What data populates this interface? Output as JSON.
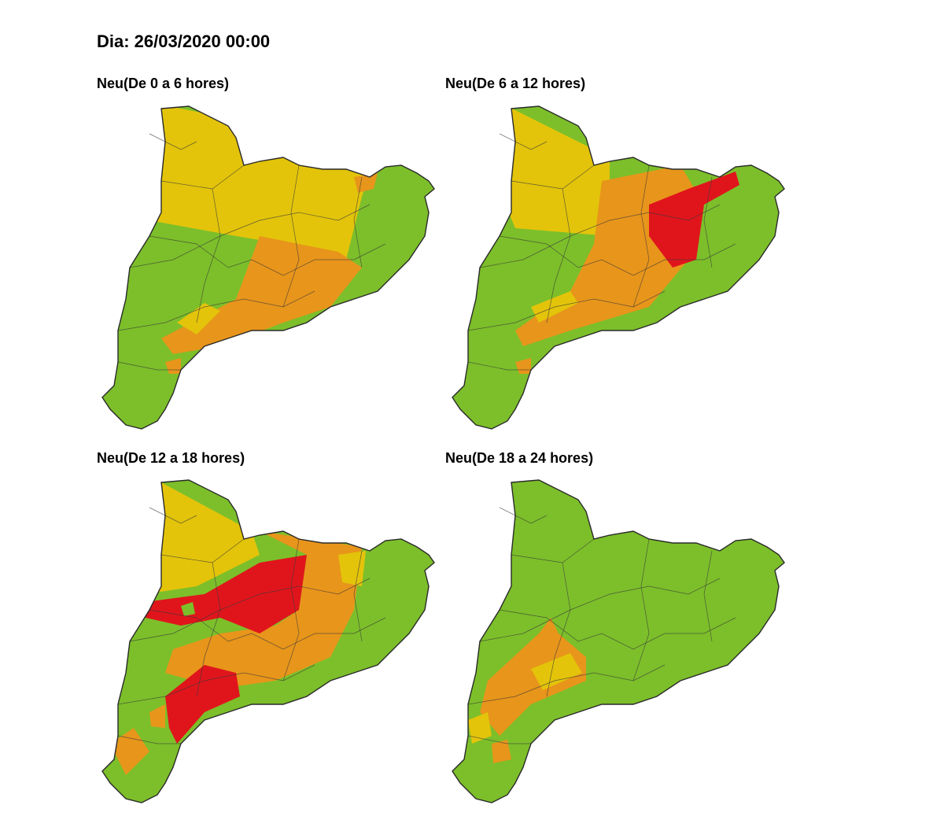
{
  "header": {
    "title": "Dia: 26/03/2020 00:00"
  },
  "panels": [
    {
      "title": "Neu(De 0 a 6 hores)"
    },
    {
      "title": "Neu(De 6 a 12 hores)"
    },
    {
      "title": "Neu(De 12 a 18 hores)"
    },
    {
      "title": "Neu(De 18 a 24 hores)"
    }
  ]
}
